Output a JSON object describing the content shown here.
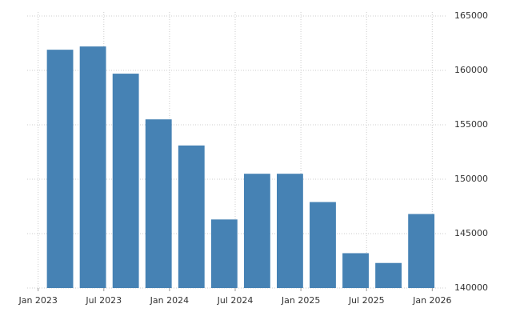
{
  "chart_data": {
    "type": "bar",
    "x": [
      "2023-03",
      "2023-06",
      "2023-09",
      "2023-12",
      "2024-03",
      "2024-06",
      "2024-09",
      "2024-12",
      "2025-03",
      "2025-06",
      "2025-09",
      "2025-12"
    ],
    "values": [
      161900,
      162200,
      159700,
      155500,
      153100,
      146300,
      150500,
      150500,
      147900,
      143200,
      142300,
      146800
    ],
    "color": "#4682b4",
    "xlim": [
      "2022-12",
      "2026-02"
    ],
    "xticks": [
      {
        "value": "2023-01",
        "label": "Jan 2023"
      },
      {
        "value": "2023-07",
        "label": "Jul 2023"
      },
      {
        "value": "2024-01",
        "label": "Jan 2024"
      },
      {
        "value": "2024-07",
        "label": "Jul 2024"
      },
      {
        "value": "2025-01",
        "label": "Jan 2025"
      },
      {
        "value": "2025-07",
        "label": "Jul 2025"
      },
      {
        "value": "2026-01",
        "label": "Jan 2026"
      }
    ],
    "ylim": [
      140000,
      165000
    ],
    "yticks": [
      140000,
      145000,
      150000,
      155000,
      160000,
      165000
    ],
    "y_axis_side": "right",
    "grid": true
  }
}
